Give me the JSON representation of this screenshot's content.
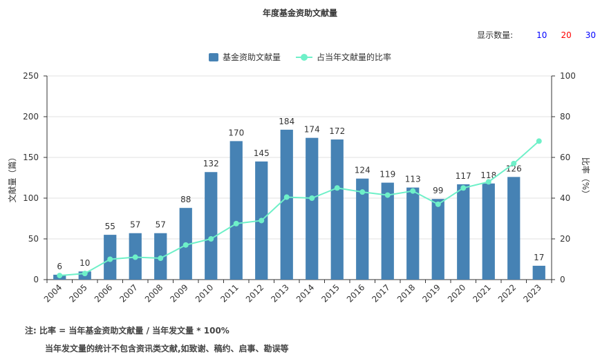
{
  "title": "年度基金资助文献量",
  "display_count": {
    "label": "显示数量:",
    "options": [
      {
        "text": "10",
        "color": "#0000ff"
      },
      {
        "text": "20",
        "color": "#ff0000"
      },
      {
        "text": "30",
        "color": "#0000ff"
      }
    ]
  },
  "colors": {
    "bar": "#4682b4",
    "line": "#6ef0c8",
    "axis": "#333333",
    "grid": "#e0e0e0"
  },
  "notes": {
    "line1": "注:  比率 = 当年基金资助文献量 / 当年发文量 * 100%",
    "line2": "当年发文量的统计不包含资讯类文献,如致谢、稿约、启事、勘误等"
  },
  "chart_data": {
    "type": "bar",
    "title": "年度基金资助文献量",
    "categories": [
      "2004",
      "2005",
      "2006",
      "2007",
      "2008",
      "2009",
      "2010",
      "2011",
      "2012",
      "2013",
      "2014",
      "2015",
      "2016",
      "2017",
      "2018",
      "2019",
      "2020",
      "2021",
      "2022",
      "2023"
    ],
    "series": [
      {
        "name": "基金资助文献量",
        "type": "bar",
        "axis": "left",
        "values": [
          6,
          10,
          55,
          57,
          57,
          88,
          132,
          170,
          145,
          184,
          174,
          172,
          124,
          119,
          113,
          99,
          117,
          118,
          126,
          17
        ]
      },
      {
        "name": "占当年文献量的比率",
        "type": "line",
        "axis": "right",
        "values": [
          2,
          3,
          10,
          11,
          10.5,
          17,
          20,
          27.5,
          29,
          40.5,
          40,
          45,
          43,
          41.5,
          43.5,
          37,
          45,
          48,
          57,
          68
        ]
      }
    ],
    "ylabel": "文献量（篇）",
    "y2label": "比率（%）",
    "ylim": [
      0,
      250
    ],
    "y2lim": [
      0,
      100
    ],
    "yticks": [
      0,
      50,
      100,
      150,
      200,
      250
    ],
    "y2ticks": [
      0,
      20,
      40,
      60,
      80,
      100
    ],
    "grid": true,
    "legend_position": "top-center"
  }
}
